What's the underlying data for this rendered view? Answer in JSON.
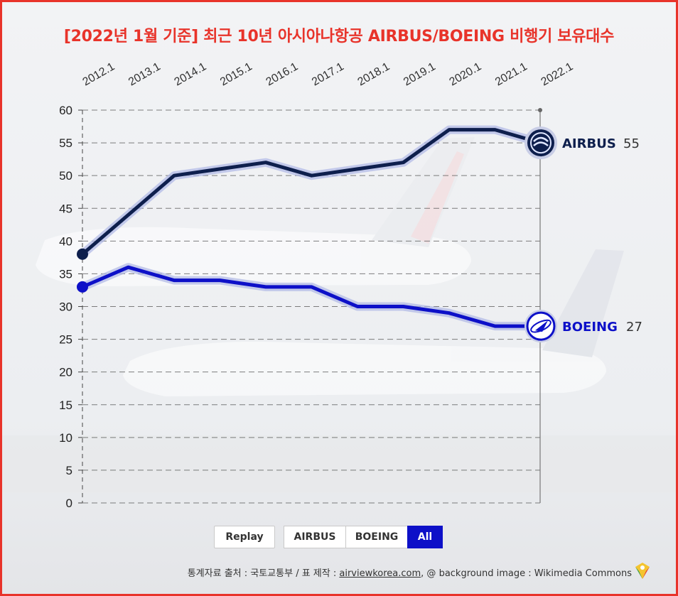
{
  "title": "[2022년 1월 기준] 최근 10년 아시아나항공 AIRBUS/BOEING 비행기 보유대수",
  "colors": {
    "title": "#e8332a",
    "airbus": "#0e1f4d",
    "boeing": "#0d10c8",
    "active_button": "#0d10c8"
  },
  "chart_data": {
    "type": "line",
    "x": [
      "2012.1",
      "2013.1",
      "2014.1",
      "2015.1",
      "2016.1",
      "2017.1",
      "2018.1",
      "2019.1",
      "2020.1",
      "2021.1",
      "2022.1"
    ],
    "ylim": [
      0,
      60
    ],
    "yticks": [
      "0",
      "5",
      "10",
      "15",
      "20",
      "25",
      "30",
      "35",
      "40",
      "45",
      "50",
      "55",
      "60"
    ],
    "grid": true,
    "series": [
      {
        "name": "AIRBUS",
        "end_value": "55",
        "values": [
          38,
          44,
          50,
          51,
          52,
          50,
          51,
          52,
          57,
          57,
          55
        ],
        "end_icon": "airbus-logo-icon"
      },
      {
        "name": "BOEING",
        "end_value": "27",
        "values": [
          33,
          36,
          34,
          34,
          33,
          33,
          30,
          30,
          29,
          27,
          27
        ],
        "end_icon": "boeing-logo-icon"
      }
    ]
  },
  "controls": {
    "replay": "Replay",
    "airbus": "AIRBUS",
    "boeing": "BOEING",
    "all": "All"
  },
  "source": {
    "prefix": "통계자료 출처 : 국토교통부 / 표 제작 : ",
    "link": "airviewkorea.com",
    "suffix": ", @ background image : Wikimedia Commons",
    "badge_icon": "airview-logo-icon"
  }
}
